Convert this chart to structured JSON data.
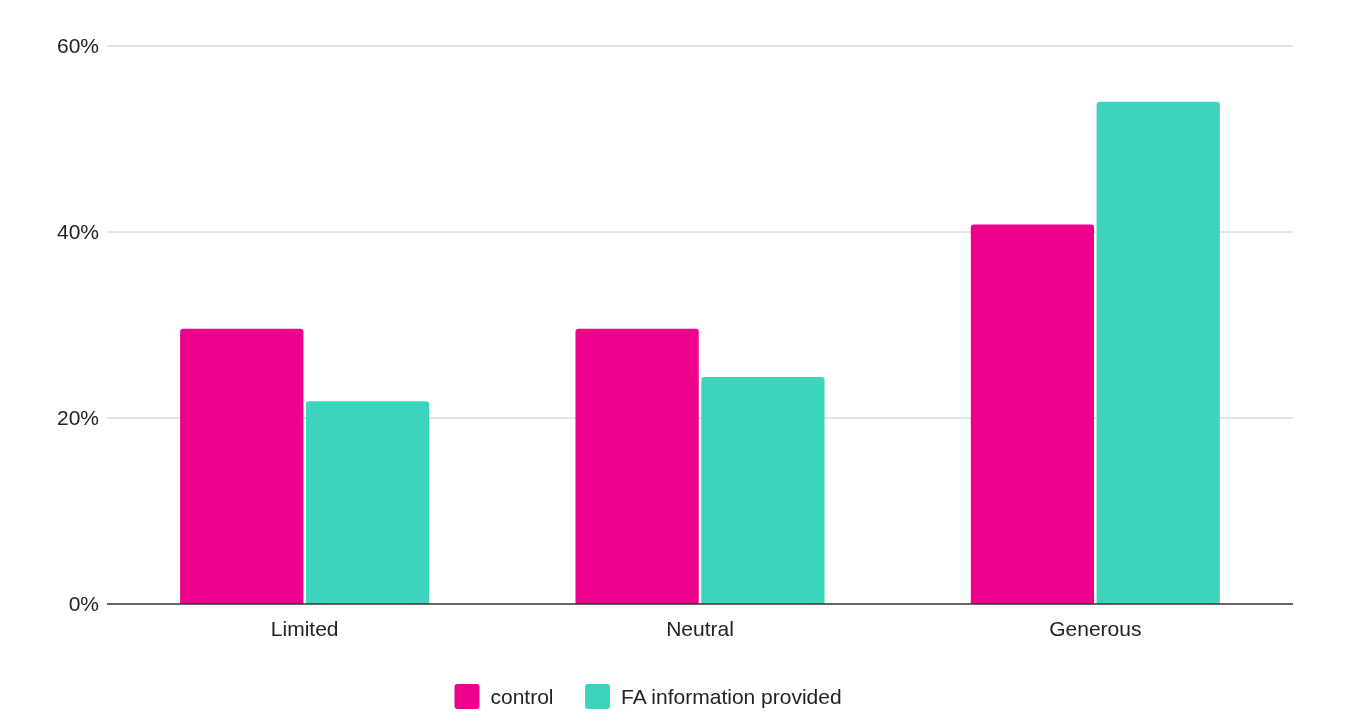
{
  "chart_data": {
    "type": "bar",
    "categories": [
      "Limited",
      "Neutral",
      "Generous"
    ],
    "series": [
      {
        "name": "control",
        "color": "#ec008c",
        "values": [
          29.6,
          29.6,
          40.8
        ]
      },
      {
        "name": "FA information provided",
        "color": "#3dd4bd",
        "values": [
          21.8,
          24.4,
          54.0
        ]
      }
    ],
    "ylim": [
      0,
      60
    ],
    "yticks": [
      {
        "value": 0,
        "label": "0%"
      },
      {
        "value": 20,
        "label": "20%"
      },
      {
        "value": 40,
        "label": "40%"
      },
      {
        "value": 60,
        "label": "60%"
      }
    ],
    "grid": "y",
    "legend": "bottom"
  }
}
